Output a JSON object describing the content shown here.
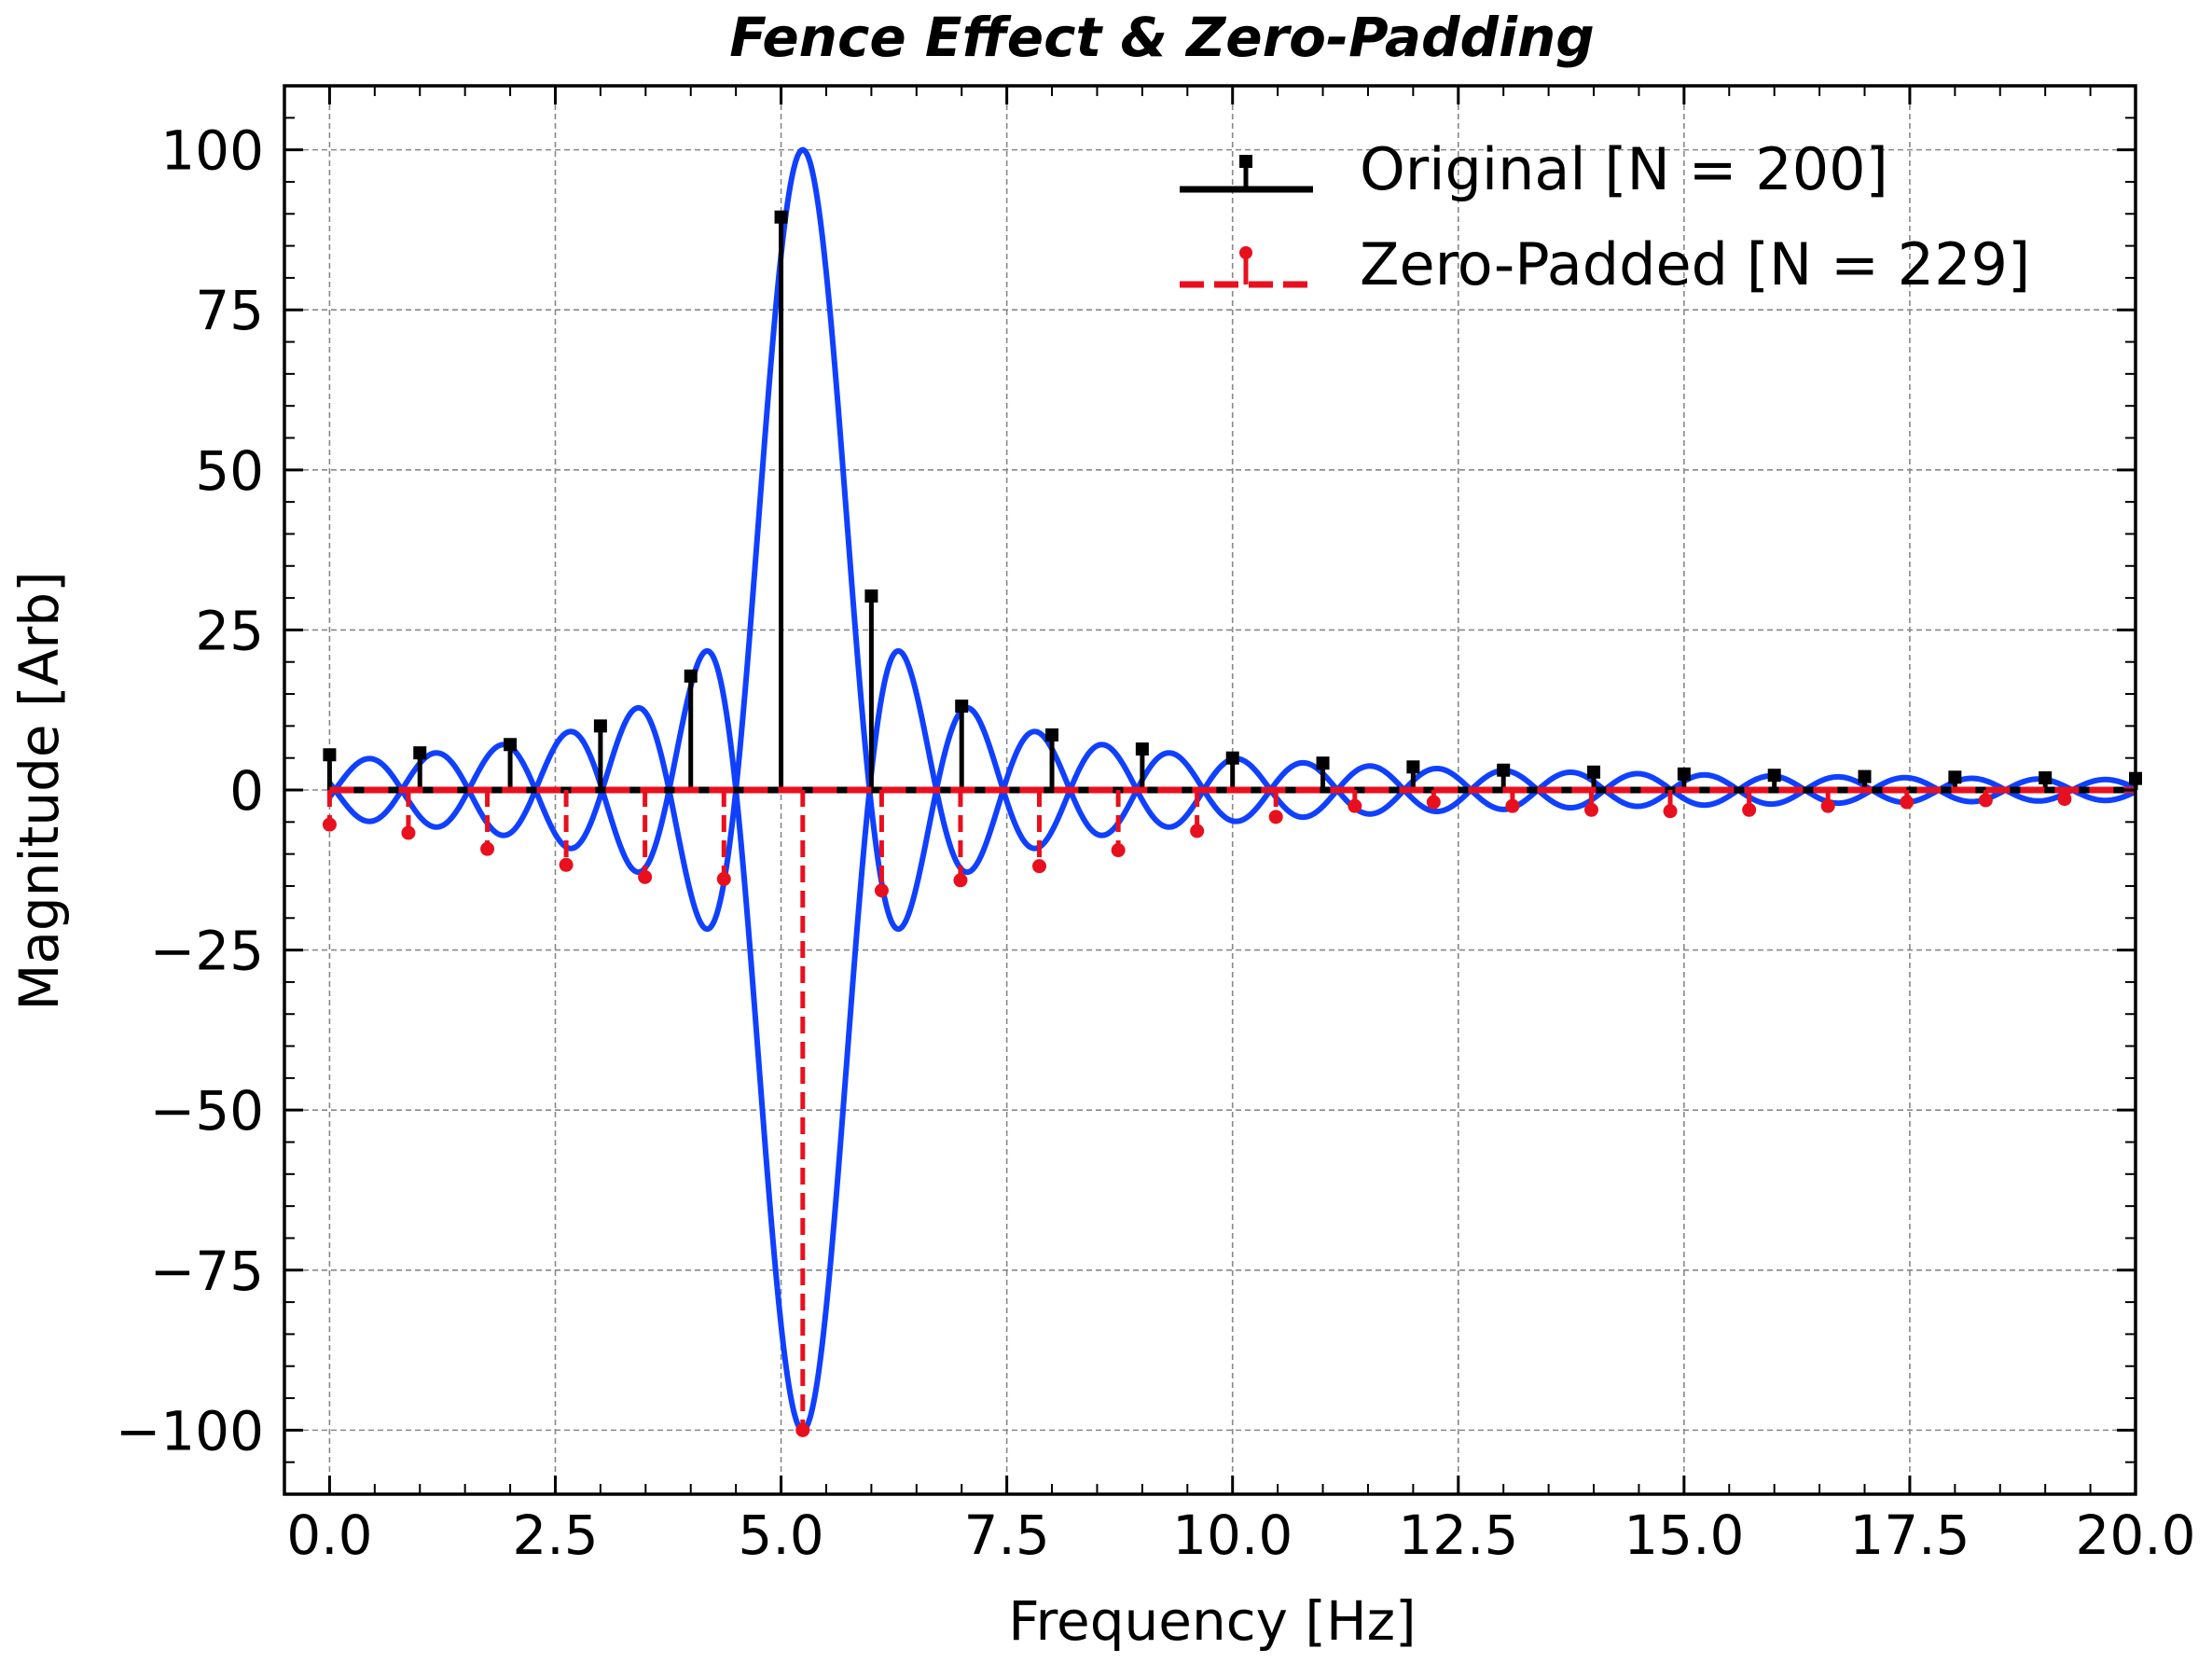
{
  "chart_data": {
    "type": "stem",
    "title": "Fence Effect & Zero-Padding",
    "xlabel": "Frequency [Hz]",
    "ylabel": "Magnitude [Arb]",
    "xlim": [
      -0.5,
      20
    ],
    "ylim": [
      -110,
      110
    ],
    "x_ticks": [
      0.0,
      2.5,
      5.0,
      7.5,
      10.0,
      12.5,
      15.0,
      17.5,
      20.0
    ],
    "x_tick_labels": [
      "0.0",
      "2.5",
      "5.0",
      "7.5",
      "10.0",
      "12.5",
      "15.0",
      "17.5",
      "20.0"
    ],
    "y_ticks": [
      100,
      75,
      50,
      25,
      0,
      -25,
      -50,
      -75,
      -100
    ],
    "y_tick_labels": [
      "100",
      "75",
      "50",
      "25",
      "0",
      "−25",
      "−50",
      "−75",
      "−100"
    ],
    "grid": true,
    "legend_position": "top-right",
    "colors": {
      "original": "#000000",
      "zero_padded": "#e8101e",
      "envelope": "#1040ff"
    },
    "series": [
      {
        "name": "Original [N = 200]",
        "style": "stem-solid-square",
        "x": [
          0,
          1,
          2,
          3,
          4,
          5,
          6,
          7,
          8,
          9,
          10,
          11,
          12,
          13,
          14,
          15,
          16,
          17,
          18,
          19,
          20
        ],
        "values": [
          5.5,
          5.8,
          7.1,
          10.0,
          17.8,
          89.5,
          30.3,
          13.1,
          8.6,
          6.4,
          5.0,
          4.2,
          3.6,
          3.1,
          2.8,
          2.5,
          2.3,
          2.1,
          2.0,
          1.9,
          1.8
        ]
      },
      {
        "name": "Zero-Padded [N = 229]",
        "style": "stem-dashed-dot",
        "x": [
          0,
          0.873,
          1.747,
          2.62,
          3.493,
          4.367,
          5.24,
          6.114,
          6.987,
          7.86,
          8.734,
          9.607,
          10.48,
          11.354,
          12.227,
          13.1,
          13.974,
          14.847,
          15.721,
          16.594,
          17.467,
          18.341,
          19.214
        ],
        "values": [
          -5.4,
          -6.7,
          -9.2,
          -11.7,
          -13.6,
          -13.9,
          -100,
          -15.7,
          -14.1,
          -11.9,
          -9.4,
          -6.4,
          -4.2,
          -2.5,
          -1.9,
          -2.5,
          -3.1,
          -3.3,
          -3.1,
          -2.5,
          -1.9,
          -1.6,
          -1.4
        ]
      },
      {
        "name": "",
        "style": "envelope-curve",
        "center": 5.24,
        "peak": 100,
        "half_width": 0.74,
        "x_range": [
          0,
          20
        ]
      }
    ]
  }
}
